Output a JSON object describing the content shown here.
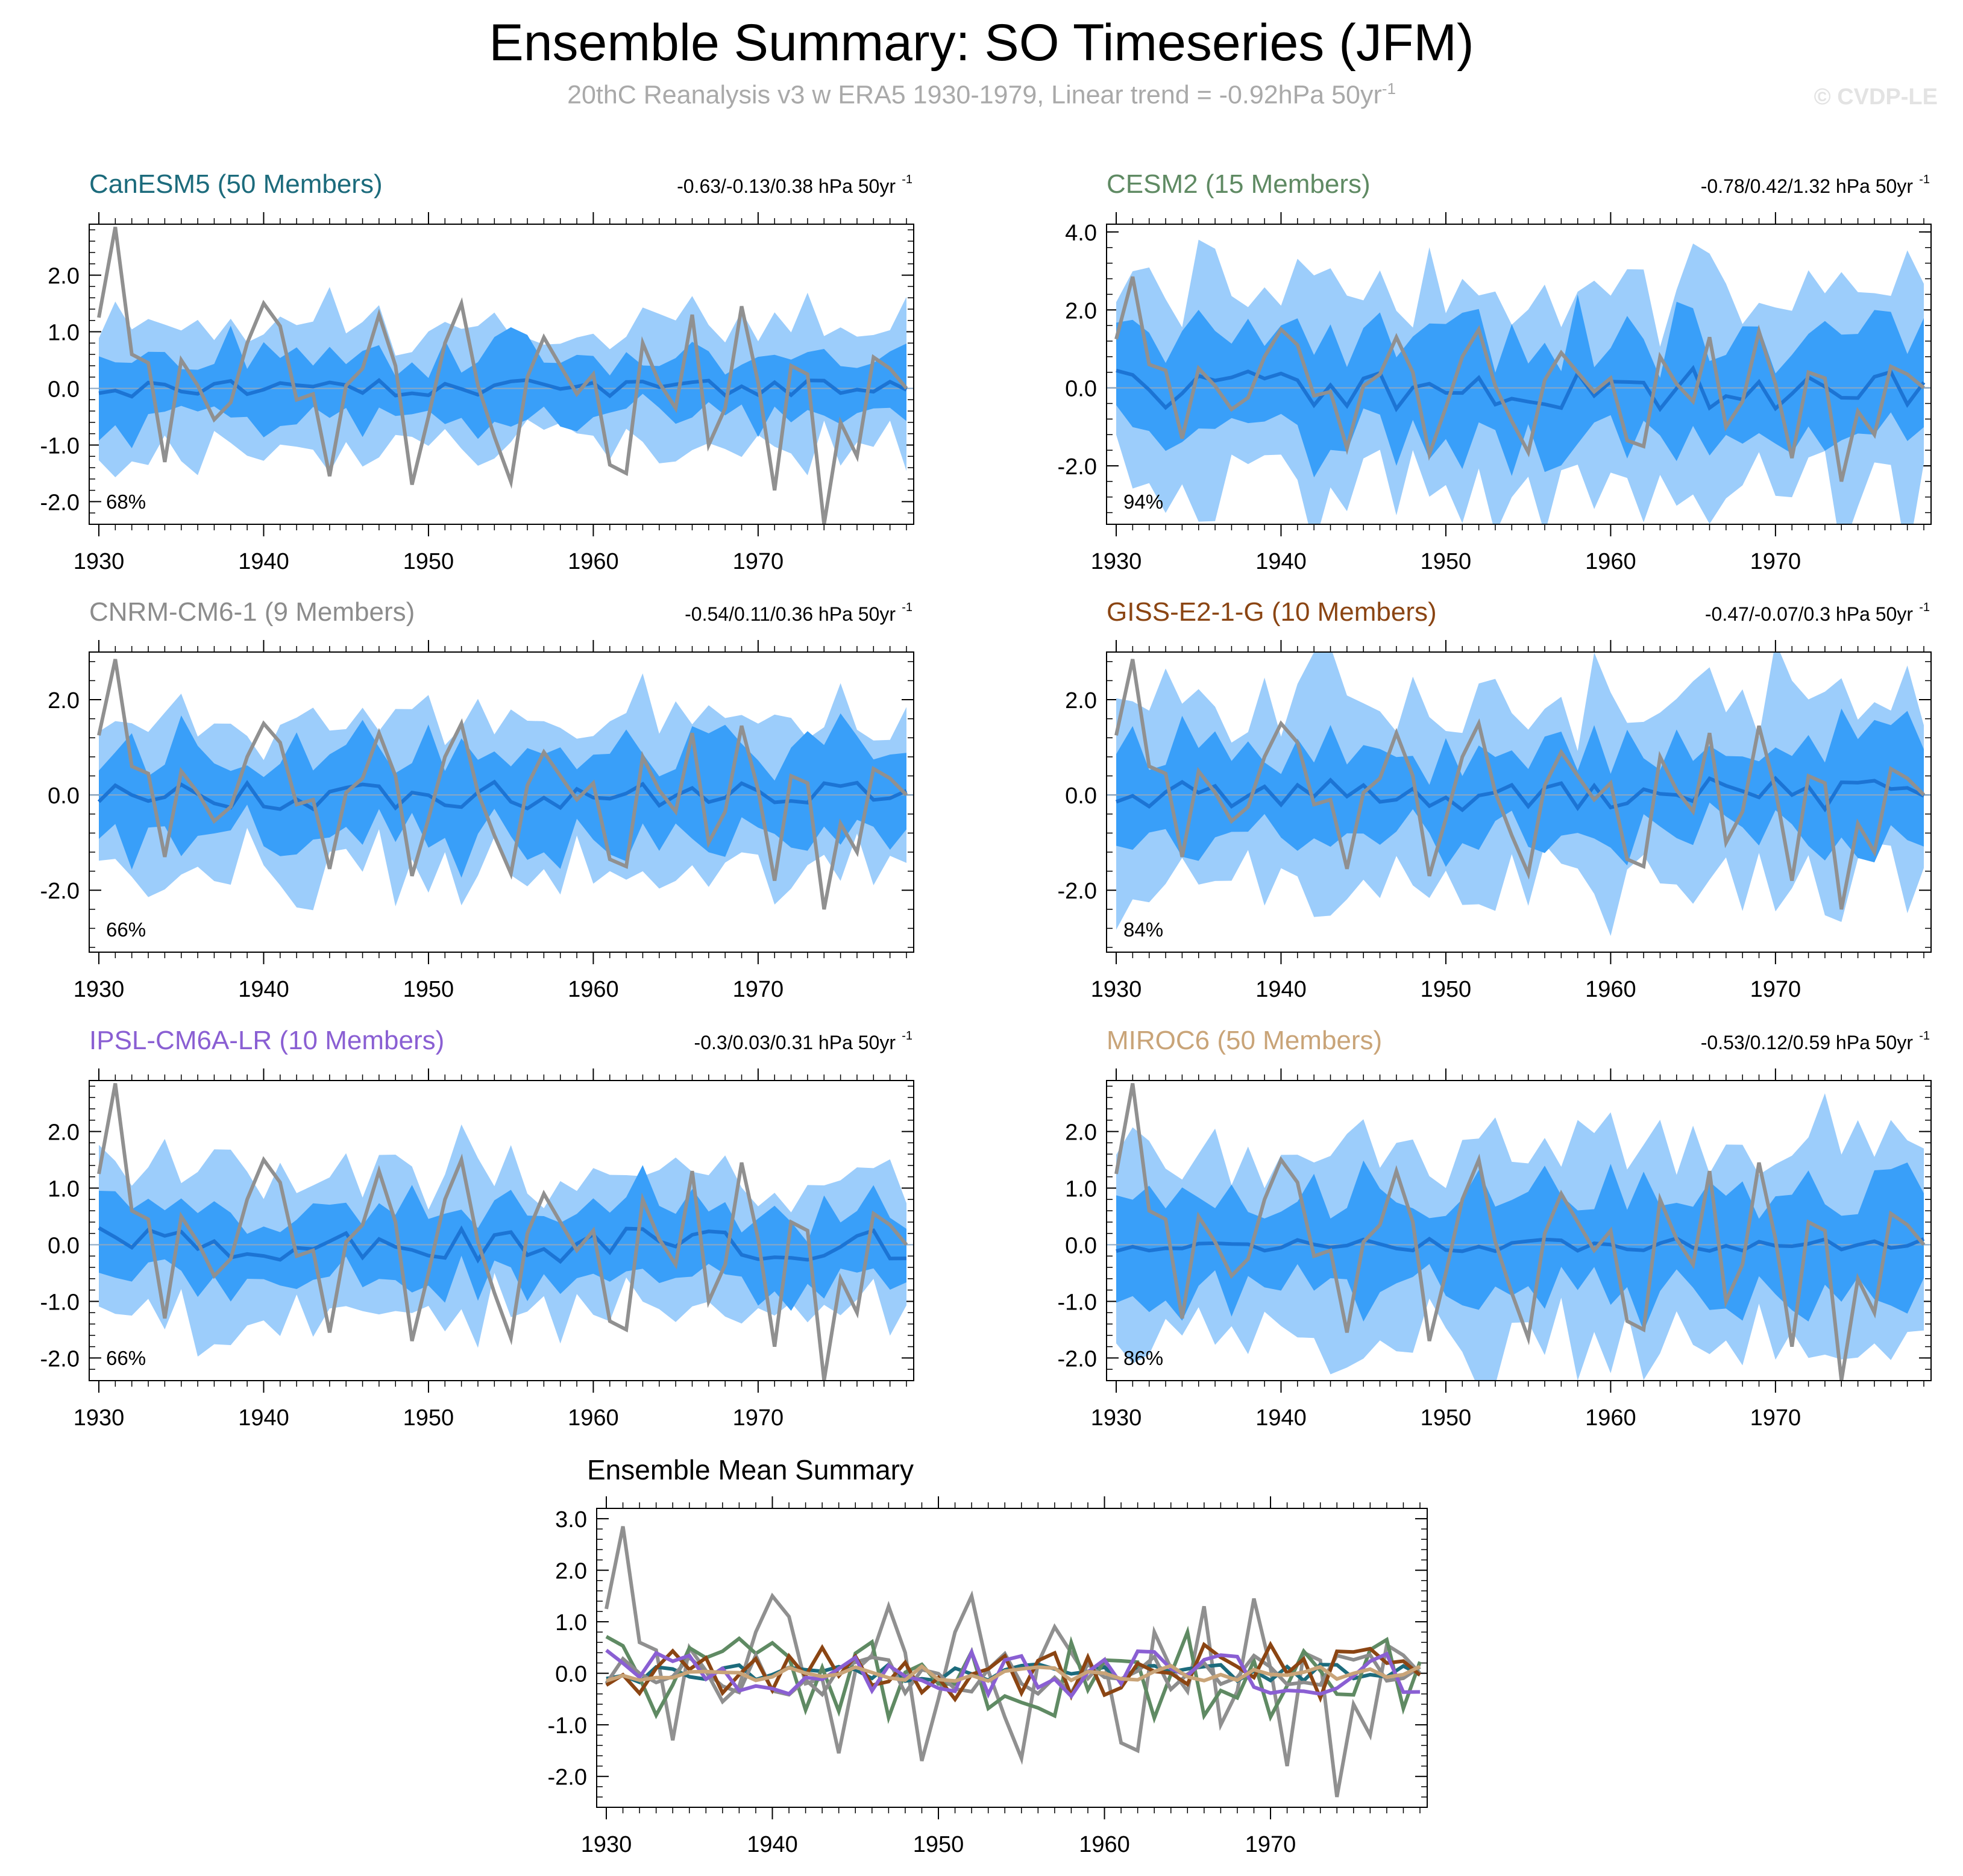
{
  "title": "Ensemble Summary: SO Timeseries (JFM)",
  "subtitle": "20thC Reanalysis v3 w ERA5 1930-1979, Linear trend = -0.92hPa 50yr",
  "subtitle_superscript": "-1",
  "watermark": "© CVDP-LE",
  "colors": {
    "band_outer": "#9ccdfb",
    "band_inner": "#399ff9",
    "ens_mean": "#1c74d4",
    "observations": "#909090",
    "zero_line": "#8aa7c4"
  },
  "observations": [
    1.25,
    2.85,
    0.6,
    0.45,
    -1.3,
    0.5,
    0.05,
    -0.55,
    -0.25,
    0.8,
    1.5,
    1.1,
    -0.2,
    -0.1,
    -1.55,
    0.05,
    0.35,
    1.3,
    0.4,
    -1.7,
    -0.5,
    0.8,
    1.5,
    0.05,
    -0.85,
    -1.65,
    0.2,
    0.9,
    0.4,
    -0.1,
    0.25,
    -1.35,
    -1.5,
    0.8,
    0.1,
    -0.35,
    1.3,
    -1.0,
    -0.35,
    1.45,
    0.1,
    -1.8,
    0.4,
    0.25,
    -2.4,
    -0.6,
    -1.2,
    0.55,
    0.35,
    0.0
  ],
  "chart_data": [
    {
      "type": "area",
      "name": "CanESM5 (50 Members)",
      "title": "CanESM5 (50 Members)",
      "title_color": "#1c6b7c",
      "trend_label": "-0.63/-0.13/0.38 hPa 50yr",
      "trend_sup": "-1",
      "pct_label": "68%",
      "x_start": 1930,
      "x_end": 1979,
      "xticks": [
        "1930",
        "1940",
        "1950",
        "1960",
        "1970"
      ],
      "yticks": [
        "-2.0",
        "-1.0",
        "0.0",
        "1.0",
        "2.0"
      ],
      "yticks_values": [
        -2,
        -1,
        0,
        1,
        2
      ],
      "ylim": [
        -2.4,
        2.9
      ],
      "series_smoothness": 0.2,
      "mean_amp": 0.15,
      "inner_amp": 0.55,
      "outer_amp": 1.15,
      "seed": 3
    },
    {
      "type": "area",
      "name": "CESM2 (15 Members)",
      "title": "CESM2 (15 Members)",
      "title_color": "#5f8a63",
      "trend_label": "-0.78/0.42/1.32 hPa 50yr",
      "trend_sup": "-1",
      "pct_label": "94%",
      "x_start": 1930,
      "x_end": 1979,
      "xticks": [
        "1930",
        "1940",
        "1950",
        "1960",
        "1970"
      ],
      "yticks": [
        "-2.0",
        "0.0",
        "2.0",
        "4.0"
      ],
      "yticks_values": [
        -2,
        0,
        2,
        4
      ],
      "ylim": [
        -3.5,
        4.2
      ],
      "mean_amp": 0.55,
      "inner_amp": 1.3,
      "outer_amp": 2.8,
      "seed": 11
    },
    {
      "type": "area",
      "name": "CNRM-CM6-1 (9 Members)",
      "title": "CNRM-CM6-1 (9 Members)",
      "title_color": "#8c8c8c",
      "trend_label": "-0.54/0.11/0.36 hPa 50yr",
      "trend_sup": "-1",
      "pct_label": "66%",
      "x_start": 1930,
      "x_end": 1979,
      "xticks": [
        "1930",
        "1940",
        "1950",
        "1960",
        "1970"
      ],
      "yticks": [
        "-2.0",
        "0.0",
        "2.0"
      ],
      "yticks_values": [
        -2,
        0,
        2
      ],
      "ylim": [
        -3.3,
        3.0
      ],
      "mean_amp": 0.3,
      "inner_amp": 0.9,
      "outer_amp": 1.6,
      "seed": 21
    },
    {
      "type": "area",
      "name": "GISS-E2-1-G (10 Members)",
      "title": "GISS-E2-1-G (10 Members)",
      "title_color": "#8b4513",
      "trend_label": "-0.47/-0.07/0.3 hPa 50yr",
      "trend_sup": "-1",
      "pct_label": "84%",
      "x_start": 1930,
      "x_end": 1979,
      "xticks": [
        "1930",
        "1940",
        "1950",
        "1960",
        "1970"
      ],
      "yticks": [
        "-2.0",
        "0.0",
        "2.0"
      ],
      "yticks_values": [
        -2,
        0,
        2
      ],
      "ylim": [
        -3.3,
        3.0
      ],
      "mean_amp": 0.35,
      "inner_amp": 1.0,
      "outer_amp": 2.0,
      "seed": 33
    },
    {
      "type": "area",
      "name": "IPSL-CM6A-LR (10 Members)",
      "title": "IPSL-CM6A-LR (10 Members)",
      "title_color": "#8a5fd3",
      "trend_label": "-0.3/0.03/0.31 hPa 50yr",
      "trend_sup": "-1",
      "pct_label": "66%",
      "x_start": 1930,
      "x_end": 1979,
      "xticks": [
        "1930",
        "1940",
        "1950",
        "1960",
        "1970"
      ],
      "yticks": [
        "-2.0",
        "-1.0",
        "0.0",
        "1.0",
        "2.0"
      ],
      "yticks_values": [
        -2,
        -1,
        0,
        1,
        2
      ],
      "ylim": [
        -2.4,
        2.9
      ],
      "mean_amp": 0.3,
      "inner_amp": 0.65,
      "outer_amp": 1.3,
      "seed": 47
    },
    {
      "type": "area",
      "name": "MIROC6 (50 Members)",
      "title": "MIROC6 (50 Members)",
      "title_color": "#c9a478",
      "trend_label": "-0.53/0.12/0.59 hPa 50yr",
      "trend_sup": "-1",
      "pct_label": "86%",
      "x_start": 1930,
      "x_end": 1979,
      "xticks": [
        "1930",
        "1940",
        "1950",
        "1960",
        "1970"
      ],
      "yticks": [
        "-2.0",
        "-1.0",
        "0.0",
        "1.0",
        "2.0"
      ],
      "yticks_values": [
        -2,
        -1,
        0,
        1,
        2
      ],
      "ylim": [
        -2.4,
        2.9
      ],
      "mean_amp": 0.12,
      "inner_amp": 0.85,
      "outer_amp": 1.75,
      "seed": 59
    }
  ],
  "summary_chart": {
    "type": "line",
    "title": "Ensemble Mean Summary",
    "x_start": 1930,
    "x_end": 1979,
    "xticks": [
      "1930",
      "1940",
      "1950",
      "1960",
      "1970"
    ],
    "yticks": [
      "-2.0",
      "-1.0",
      "0.0",
      "1.0",
      "2.0",
      "3.0"
    ],
    "yticks_values": [
      -2,
      -1,
      0,
      1,
      2,
      3
    ],
    "ylim": [
      -2.6,
      3.2
    ],
    "series_colors": [
      "#1c6b7c",
      "#5f8a63",
      "#8c8c8c",
      "#8b4513",
      "#8a5fd3",
      "#c9a478"
    ]
  }
}
